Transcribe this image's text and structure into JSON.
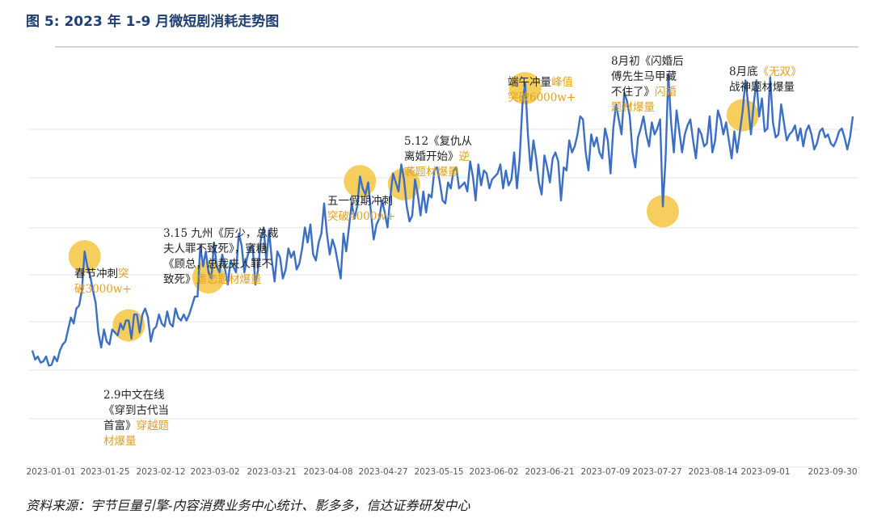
{
  "figure": {
    "title": "图 5:  2023 年 1-9 月微短剧消耗走势图",
    "source": "资料来源：宇节巨量引擎-内容消费业务中心统计、影多多，信达证券研发中心"
  },
  "colors": {
    "line": "#3a6fc4",
    "highlight": "#f5c542",
    "title": "#1f3f73",
    "annotation_accent": "#e0a020",
    "grid": "#e6e6e6"
  },
  "chart_data": {
    "type": "line",
    "title": "2023 年 1-9 月微短剧消耗走势图",
    "xlabel": "",
    "ylabel": "",
    "grid": true,
    "legend": "none",
    "x_ticks": [
      "2023-01-01",
      "2023-01-25",
      "2023-02-12",
      "2023-03-02",
      "2023-03-21",
      "2023-04-08",
      "2023-04-27",
      "2023-05-15",
      "2023-06-02",
      "2023-06-21",
      "2023-07-09",
      "2023-07-27",
      "2023-08-14",
      "2023-09-01",
      "2023-09-30"
    ],
    "ylim": [
      0,
      7000
    ],
    "series": [
      {
        "values": [
          1700,
          1550,
          1600,
          1500,
          1520,
          1600,
          1450,
          1460,
          1600,
          1520,
          1700,
          1800,
          1850,
          2050,
          2250,
          2150,
          2400,
          2450,
          2700,
          3350,
          3100,
          2950,
          2700,
          2500,
          2000,
          1750,
          2050,
          1850,
          1800,
          2050,
          2000,
          1950,
          2150,
          2050,
          2200,
          2200,
          1900,
          2300,
          2300,
          2000,
          2300,
          2400,
          2250,
          1850,
          2050,
          2100,
          2300,
          2150,
          2100,
          2350,
          2150,
          2100,
          2400,
          2250,
          2200,
          2300,
          2200,
          2300,
          2450,
          2600,
          2600,
          3450,
          3100,
          3350,
          3000,
          2900,
          3500,
          3100,
          3000,
          3300,
          3050,
          2800,
          3200,
          3100,
          3000,
          3650,
          3450,
          3000,
          3250,
          3400,
          3450,
          2800,
          3050,
          3550,
          3750,
          3200,
          3700,
          3200,
          2850,
          3350,
          3250,
          2900,
          3050,
          3400,
          3250,
          3350,
          3050,
          3150,
          3400,
          3750,
          3500,
          3800,
          3300,
          3200,
          3500,
          3650,
          4150,
          3650,
          3300,
          3550,
          3400,
          3150,
          2900,
          3650,
          3350,
          3750,
          4150,
          3900,
          4100,
          4600,
          4400,
          4300,
          4500,
          4000,
          3550,
          3800,
          3900,
          4200,
          4000,
          3750,
          4250,
          4650,
          4500,
          4350,
          4800,
          4550,
          4100,
          3850,
          3950,
          4550,
          4300,
          3950,
          4350,
          4000,
          4300,
          4250,
          4700,
          4750,
          4500,
          4200,
          4150,
          4500,
          4400,
          4700,
          4750,
          4400,
          4450,
          4500,
          4350,
          4850,
          4600,
          4200,
          4800,
          4450,
          4700,
          4650,
          4400,
          4550,
          4600,
          4650,
          4800,
          4400,
          4700,
          4450,
          4550,
          5000,
          4400,
          4900,
          5800,
          6150,
          5300,
          4700,
          5200,
          4900,
          4500,
          4300,
          4950,
          4750,
          4500,
          4900,
          5000,
          4850,
          4200,
          4750,
          4700,
          5200,
          5000,
          5100,
          5300,
          5600,
          5550,
          5000,
          4700,
          5300,
          5100,
          5250,
          5000,
          4900,
          5400,
          5200,
          4650,
          5400,
          5800,
          5550,
          5300,
          6000,
          5850,
          5600,
          5000,
          4750,
          5250,
          5400,
          5600,
          5300,
          5100,
          5500,
          5300,
          5400,
          5550,
          4100,
          4900,
          6300,
          5500,
          5000,
          5700,
          5350,
          5000,
          5300,
          5450,
          5550,
          5200,
          4900,
          5400,
          5300,
          5100,
          5150,
          5600,
          5000,
          5200,
          5700,
          5550,
          5300,
          5500,
          5200,
          4900,
          5350,
          5000,
          5350,
          5700,
          6200,
          5800,
          5300,
          5800,
          6200,
          5600,
          5900,
          5350,
          5400,
          6250,
          5500,
          5250,
          5300,
          5800,
          5500,
          5200,
          5300,
          5350,
          5450,
          5200,
          5400,
          5100,
          5350,
          5450,
          5300,
          5050,
          5150,
          5350,
          5400,
          5250,
          5300,
          5150,
          5100,
          5200,
          5350,
          5400,
          5250,
          5050,
          5250,
          5600
        ]
      }
    ],
    "highlights": [
      {
        "label": "春节冲刺",
        "index": 19
      },
      {
        "label": "2.9中文在线",
        "index": 35
      },
      {
        "label": "3.15九州",
        "index": 64
      },
      {
        "label": "五一假期",
        "index": 119
      },
      {
        "label": "5.12",
        "index": 135
      },
      {
        "label": "端午冲量",
        "index": 179
      },
      {
        "label": "8月初",
        "index": 229
      },
      {
        "label": "8月底",
        "index": 258
      }
    ],
    "annotations": [
      {
        "id": "a1",
        "lines": [
          [
            {
              "t": "春节冲刺"
            },
            {
              "t": "突",
              "hl": true
            }
          ],
          [
            {
              "t": "破3000w+",
              "hl": true
            }
          ]
        ]
      },
      {
        "id": "a2",
        "lines": [
          [
            {
              "t": "2.9中文在线"
            }
          ],
          [
            {
              "t": "《穿到古代当"
            }
          ],
          [
            {
              "t": "首富》"
            },
            {
              "t": "穿越题",
              "hl": true
            }
          ],
          [
            {
              "t": "材爆量",
              "hl": true
            }
          ]
        ]
      },
      {
        "id": "a3",
        "lines": [
          [
            {
              "t": "3.15 九州《厉少，总裁"
            }
          ],
          [
            {
              "t": "夫人罪不致死》，蜜糖"
            }
          ],
          [
            {
              "t": "《顾总，总裁夫人罪不"
            }
          ],
          [
            {
              "t": "致死》"
            },
            {
              "t": "虐恋题材爆量",
              "hl": true
            }
          ]
        ]
      },
      {
        "id": "a4",
        "lines": [
          [
            {
              "t": "五一假期冲刺"
            }
          ],
          [
            {
              "t": "突破4000w+",
              "hl": true
            }
          ]
        ]
      },
      {
        "id": "a5",
        "lines": [
          [
            {
              "t": "5.12《复仇从"
            }
          ],
          [
            {
              "t": "离婚开始》"
            },
            {
              "t": "逆",
              "hl": true
            }
          ],
          [
            {
              "t": "袭题材爆量",
              "hl": true
            }
          ]
        ]
      },
      {
        "id": "a6",
        "lines": [
          [
            {
              "t": "端午冲量"
            },
            {
              "t": "峰值",
              "hl": true
            }
          ],
          [
            {
              "t": "突破6000w+",
              "hl": true
            }
          ]
        ]
      },
      {
        "id": "a7",
        "lines": [
          [
            {
              "t": "8月初《闪婚后"
            }
          ],
          [
            {
              "t": "傅先生马甲藏"
            }
          ],
          [
            {
              "t": "不住了》"
            },
            {
              "t": "闪婚",
              "hl": true
            }
          ],
          [
            {
              "t": "题材爆量",
              "hl": true
            }
          ]
        ]
      },
      {
        "id": "a8",
        "lines": [
          [
            {
              "t": "8月底"
            },
            {
              "t": "《无双》",
              "hl": true
            }
          ],
          [
            {
              "t": "战神题材爆量"
            }
          ]
        ]
      }
    ]
  }
}
